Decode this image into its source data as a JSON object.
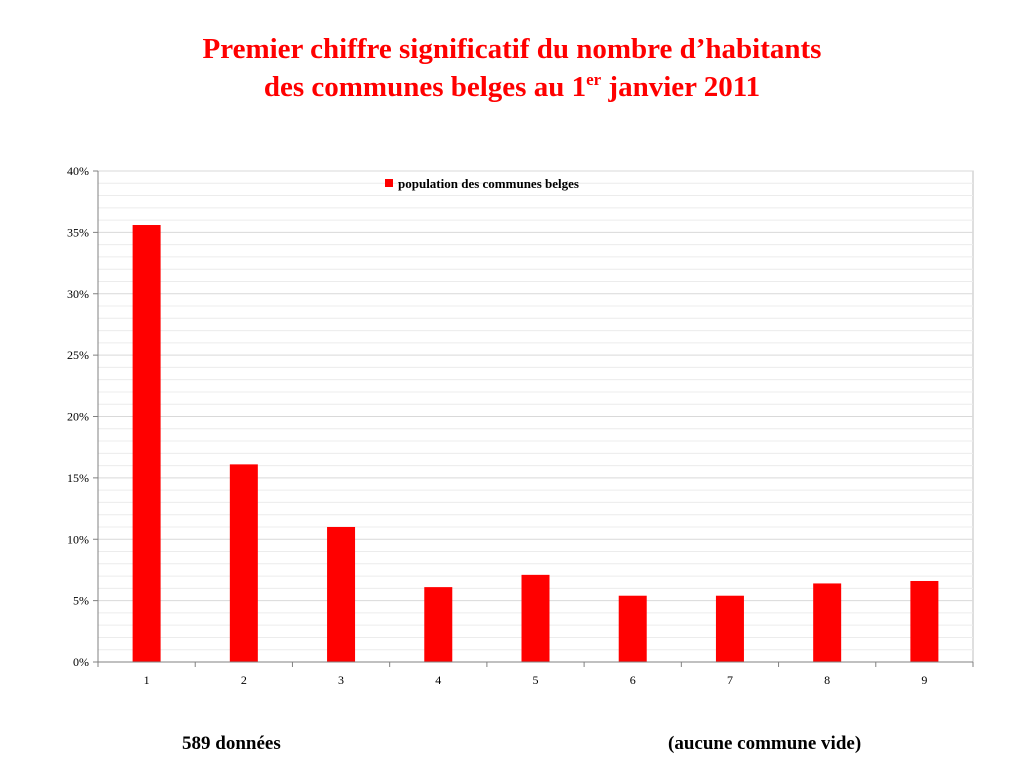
{
  "title": {
    "line1": "Premier chiffre significatif du nombre d’habitants",
    "line2_pre": "des communes belges au 1",
    "line2_sup": "er",
    "line2_post": " janvier 2011"
  },
  "footer": {
    "left": "589 données",
    "right": "(aucune commune vide)"
  },
  "colors": {
    "bar": "#ff0000",
    "title": "#ff0000",
    "grid": "#d9d9d9",
    "axis": "#808080"
  },
  "chart_data": {
    "type": "bar",
    "categories": [
      "1",
      "2",
      "3",
      "4",
      "5",
      "6",
      "7",
      "8",
      "9"
    ],
    "series": [
      {
        "name": "population des communes belges",
        "values": [
          35.6,
          16.1,
          11.0,
          6.1,
          7.1,
          5.4,
          5.4,
          6.4,
          6.6
        ]
      }
    ],
    "ylim": [
      0,
      40
    ],
    "yticks": [
      "0%",
      "5%",
      "10%",
      "15%",
      "20%",
      "25%",
      "30%",
      "35%",
      "40%"
    ],
    "ytick_values": [
      0,
      5,
      10,
      15,
      20,
      25,
      30,
      35,
      40
    ],
    "minor_grid_step": 1,
    "grid": true,
    "legend_position": "top-center",
    "xlabel": "",
    "ylabel": ""
  }
}
